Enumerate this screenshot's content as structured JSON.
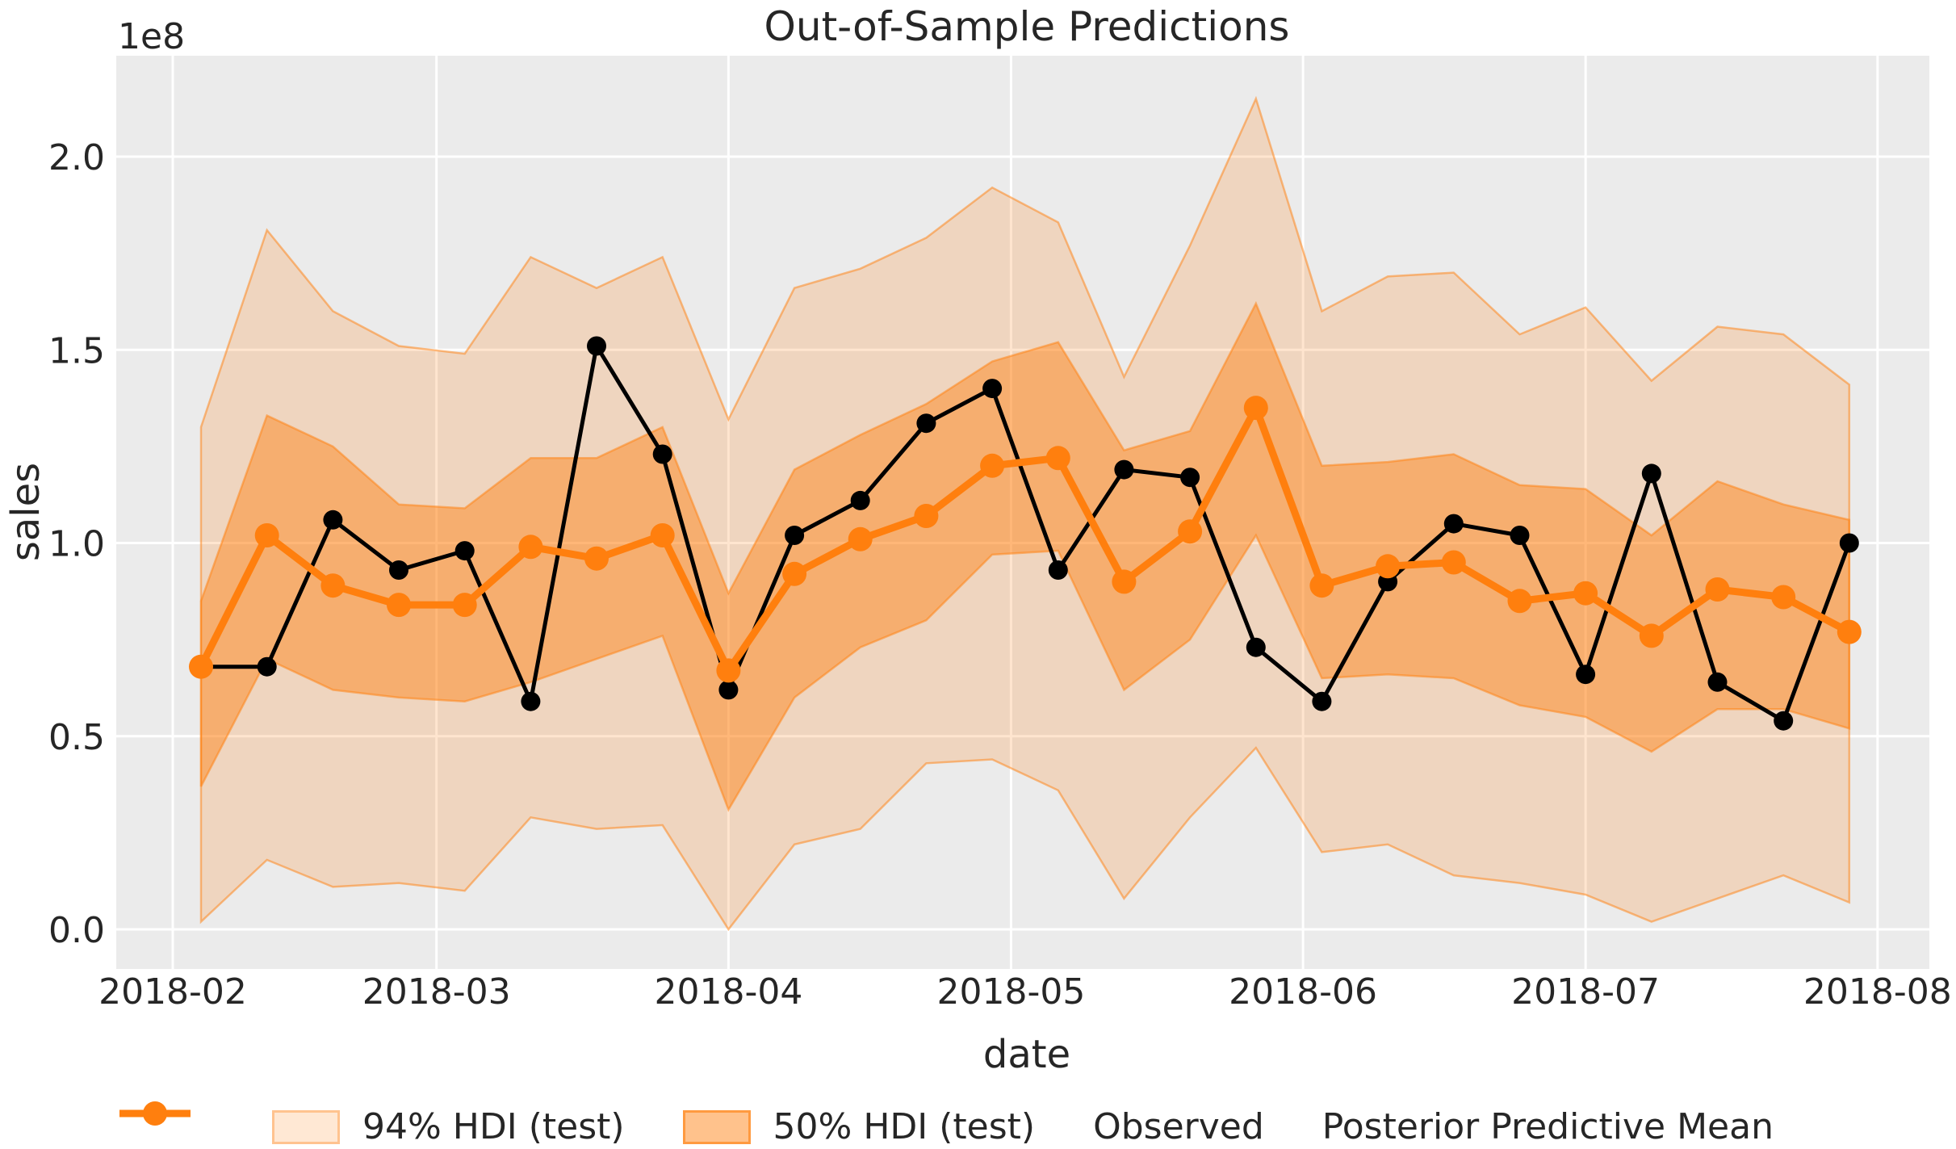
{
  "title": "Out-of-Sample Predictions",
  "colors": {
    "figure_bg": "#ffffff",
    "plot_bg": "#ebebeb",
    "grid": "#ffffff",
    "observed": "#000000",
    "posterior_mean": "#ff7f0e",
    "hdi94_fill": "rgba(255,127,14,0.2)",
    "hdi50_fill": "rgba(255,127,14,0.45)",
    "band_edge": "rgba(255,127,14,0.5)",
    "text": "#262626"
  },
  "legend": {
    "items": [
      {
        "label": "94% HDI (test)",
        "kind": "band"
      },
      {
        "label": "50% HDI (test)",
        "kind": "band"
      },
      {
        "label": "Observed",
        "kind": "line"
      },
      {
        "label": "Posterior Predictive Mean",
        "kind": "line"
      }
    ]
  },
  "chart_data": {
    "type": "line",
    "title": "Out-of-Sample Predictions",
    "xlabel": "date",
    "ylabel": "sales",
    "y_offset_text": "1e8",
    "unit_multiplier": 100000000,
    "grid": true,
    "legend_position": "lower center",
    "xlim": [
      "2018-01-26",
      "2018-08-06T12:00:00"
    ],
    "ylim": [
      -0.1023,
      2.2613
    ],
    "x_ticks": [
      {
        "date": "2018-02-01",
        "label": "2018-02"
      },
      {
        "date": "2018-03-01",
        "label": "2018-03"
      },
      {
        "date": "2018-04-01",
        "label": "2018-04"
      },
      {
        "date": "2018-05-01",
        "label": "2018-05"
      },
      {
        "date": "2018-06-01",
        "label": "2018-06"
      },
      {
        "date": "2018-07-01",
        "label": "2018-07"
      },
      {
        "date": "2018-08-01",
        "label": "2018-08"
      }
    ],
    "y_ticks": [
      {
        "value": 0.0,
        "label": "0.0"
      },
      {
        "value": 0.5,
        "label": "0.5"
      },
      {
        "value": 1.0,
        "label": "1.0"
      },
      {
        "value": 1.5,
        "label": "1.5"
      },
      {
        "value": 2.0,
        "label": "2.0"
      }
    ],
    "x": [
      "2018-02-04",
      "2018-02-11",
      "2018-02-18",
      "2018-02-25",
      "2018-03-04",
      "2018-03-11",
      "2018-03-18",
      "2018-03-25",
      "2018-04-01",
      "2018-04-08",
      "2018-04-15",
      "2018-04-22",
      "2018-04-29",
      "2018-05-06",
      "2018-05-13",
      "2018-05-20",
      "2018-05-27",
      "2018-06-03",
      "2018-06-10",
      "2018-06-17",
      "2018-06-24",
      "2018-07-01",
      "2018-07-08",
      "2018-07-15",
      "2018-07-22",
      "2018-07-29"
    ],
    "series": [
      {
        "name": "94% HDI (test)",
        "type": "band",
        "lo": [
          0.02,
          0.18,
          0.11,
          0.12,
          0.1,
          0.29,
          0.26,
          0.27,
          0.0,
          0.22,
          0.26,
          0.43,
          0.44,
          0.36,
          0.08,
          0.29,
          0.47,
          0.2,
          0.22,
          0.14,
          0.12,
          0.09,
          0.02,
          0.08,
          0.14,
          0.07
        ],
        "hi": [
          1.3,
          1.81,
          1.6,
          1.51,
          1.49,
          1.74,
          1.66,
          1.74,
          1.32,
          1.66,
          1.71,
          1.79,
          1.92,
          1.83,
          1.43,
          1.77,
          2.15,
          1.6,
          1.69,
          1.7,
          1.54,
          1.61,
          1.42,
          1.56,
          1.54,
          1.41
        ]
      },
      {
        "name": "50% HDI (test)",
        "type": "band",
        "lo": [
          0.37,
          0.7,
          0.62,
          0.6,
          0.59,
          0.64,
          0.7,
          0.76,
          0.31,
          0.6,
          0.73,
          0.8,
          0.97,
          0.98,
          0.62,
          0.75,
          1.02,
          0.65,
          0.66,
          0.65,
          0.58,
          0.55,
          0.46,
          0.57,
          0.57,
          0.52
        ],
        "hi": [
          0.85,
          1.33,
          1.25,
          1.1,
          1.09,
          1.22,
          1.22,
          1.3,
          0.87,
          1.19,
          1.28,
          1.36,
          1.47,
          1.52,
          1.24,
          1.29,
          1.62,
          1.2,
          1.21,
          1.23,
          1.15,
          1.14,
          1.02,
          1.16,
          1.1,
          1.06
        ]
      },
      {
        "name": "Observed",
        "type": "line",
        "values": [
          0.68,
          0.68,
          1.06,
          0.93,
          0.98,
          0.59,
          1.51,
          1.23,
          0.62,
          1.02,
          1.11,
          1.31,
          1.4,
          0.93,
          1.19,
          1.17,
          0.73,
          0.59,
          0.9,
          1.05,
          1.02,
          0.66,
          1.18,
          0.64,
          0.54,
          1.0
        ]
      },
      {
        "name": "Posterior Predictive Mean",
        "type": "line",
        "values": [
          0.68,
          1.02,
          0.89,
          0.84,
          0.84,
          0.99,
          0.96,
          1.02,
          0.67,
          0.92,
          1.01,
          1.07,
          1.2,
          1.22,
          0.9,
          1.03,
          1.35,
          0.89,
          0.94,
          0.95,
          0.85,
          0.87,
          0.76,
          0.88,
          0.86,
          0.77
        ]
      }
    ]
  }
}
